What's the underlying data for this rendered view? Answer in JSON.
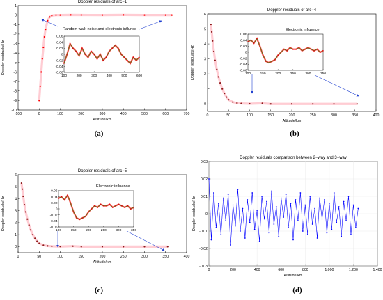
{
  "chart_data": [
    {
      "id": "a",
      "type": "scatter",
      "title": "Doppler residuals of arc−1",
      "xlabel": "Altitude/km",
      "ylabel": "Doppler residuals/Hz",
      "xlim": [
        -100,
        700
      ],
      "ylim": [
        -10,
        1
      ],
      "xticks": [
        -100,
        0,
        100,
        200,
        300,
        400,
        500,
        600,
        700
      ],
      "xtick_labels": [
        "-100",
        "0",
        "100",
        "200",
        "300",
        "400",
        "500",
        "600",
        "700"
      ],
      "yticks": [
        1,
        0,
        -1,
        -2,
        -3,
        -4,
        -5,
        -6,
        -7,
        -8,
        -9,
        -10
      ],
      "ytick_labels": [
        "1",
        "0",
        "-1",
        "-2",
        "-3",
        "-4",
        "-5",
        "-6",
        "-7",
        "-8",
        "-9",
        "-10"
      ],
      "series": [
        {
          "color": "#ff0000",
          "x": [
            0,
            5,
            10,
            15,
            20,
            25,
            30,
            40,
            50,
            60,
            80,
            100,
            150,
            200,
            300,
            400,
            500,
            600,
            630
          ],
          "y": [
            -9.0,
            -7.5,
            -6.0,
            -4.6,
            -3.4,
            -2.3,
            -1.5,
            -0.6,
            -0.2,
            -0.05,
            0.0,
            0.0,
            0.02,
            0.01,
            0.0,
            0.02,
            0.0,
            0.0,
            0.0
          ]
        }
      ],
      "annotation": "Random walk noise and electronic influnce",
      "caption": "(a)",
      "inset": {
        "xlim": [
          100,
          600
        ],
        "ylim": [
          -0.06,
          0.06
        ],
        "xticks": [
          100,
          200,
          300,
          400,
          500,
          600
        ],
        "xtick_labels": [
          "100",
          "200",
          "300",
          "400",
          "500",
          "600"
        ],
        "yticks": [
          0.06,
          0.04,
          0.02,
          0,
          -0.02,
          -0.04,
          -0.06
        ],
        "ytick_labels": [
          "0.06",
          "0.04",
          "0.02",
          "0",
          "-0.02",
          "-0.04",
          "-0.06"
        ],
        "x": [
          100,
          120,
          140,
          160,
          180,
          200,
          220,
          240,
          260,
          280,
          300,
          320,
          340,
          360,
          380,
          400,
          420,
          440,
          460,
          480,
          500,
          520,
          540,
          560,
          580,
          600
        ],
        "y": [
          -0.03,
          0.0,
          0.035,
          0.02,
          0.01,
          -0.005,
          0.02,
          0.0,
          -0.01,
          0.01,
          0.0,
          -0.015,
          0.0,
          -0.02,
          -0.01,
          0.01,
          0.02,
          0.03,
          0.02,
          0.0,
          -0.01,
          -0.02,
          -0.03,
          -0.01,
          -0.02,
          -0.01
        ]
      }
    },
    {
      "id": "b",
      "type": "scatter",
      "title": "Doppler residuals of arc−4",
      "xlabel": "Altitude/km",
      "ylabel": "Doppler residuals/Hz",
      "xlim": [
        0,
        400
      ],
      "ylim": [
        -0.5,
        6
      ],
      "xticks": [
        0,
        50,
        100,
        150,
        200,
        250,
        300,
        350,
        400
      ],
      "xtick_labels": [
        "0",
        "50",
        "100",
        "150",
        "200",
        "250",
        "300",
        "350",
        "400"
      ],
      "yticks": [
        0,
        1,
        2,
        3,
        4,
        5,
        6
      ],
      "ytick_labels": [
        "0",
        "1",
        "2",
        "3",
        "4",
        "5",
        "6"
      ],
      "series": [
        {
          "color": "#8b1a1a",
          "x": [
            8,
            10,
            12,
            15,
            18,
            22,
            26,
            30,
            35,
            40,
            45,
            50,
            60,
            70,
            80,
            100,
            130,
            150,
            200,
            250,
            300,
            355
          ],
          "y": [
            5.3,
            4.8,
            4.2,
            3.5,
            2.9,
            2.3,
            1.8,
            1.4,
            1.0,
            0.7,
            0.45,
            0.28,
            0.12,
            0.06,
            0.03,
            0.01,
            0.04,
            0.0,
            0.0,
            0.0,
            0.0,
            0.0
          ]
        }
      ],
      "annotation": "Electronic influence",
      "caption": "(b)",
      "inset": {
        "xlim": [
          100,
          350
        ],
        "ylim": [
          -0.06,
          0.06
        ],
        "xticks": [
          100,
          150,
          200,
          250,
          300,
          350
        ],
        "xtick_labels": [
          "100",
          "150",
          "200",
          "250",
          "300",
          "350"
        ],
        "yticks": [
          0.06,
          0.04,
          0.02,
          0,
          -0.02,
          -0.04,
          -0.06
        ],
        "ytick_labels": [
          "0.06",
          "0.04",
          "0.02",
          "0",
          "-0.02",
          "-0.04",
          "-0.06"
        ],
        "x": [
          100,
          110,
          120,
          130,
          140,
          150,
          160,
          170,
          180,
          190,
          200,
          210,
          220,
          230,
          240,
          250,
          260,
          270,
          280,
          290,
          300,
          310,
          320,
          330,
          340,
          350
        ],
        "y": [
          0.035,
          0.04,
          0.03,
          0.045,
          0.02,
          -0.01,
          -0.03,
          -0.035,
          -0.03,
          -0.025,
          -0.01,
          0.0,
          0.01,
          0.005,
          0.015,
          0.01,
          0.01,
          0.015,
          0.005,
          0.01,
          0.015,
          0.01,
          0.005,
          0.01,
          0.0,
          0.005
        ]
      }
    },
    {
      "id": "c",
      "type": "scatter",
      "title": "Doppler residuals of arc−5",
      "xlabel": "Altitude/km",
      "ylabel": "Doppler residuals/Hz",
      "xlim": [
        0,
        400
      ],
      "ylim": [
        -0.5,
        6
      ],
      "xticks": [
        0,
        50,
        100,
        150,
        200,
        250,
        300,
        350,
        400
      ],
      "xtick_labels": [
        "0",
        "50",
        "100",
        "150",
        "200",
        "250",
        "300",
        "350",
        "400"
      ],
      "yticks": [
        0,
        1,
        2,
        3,
        4,
        5,
        6
      ],
      "ytick_labels": [
        "0",
        "1",
        "2",
        "3",
        "4",
        "5",
        "6"
      ],
      "series": [
        {
          "color": "#8b1a1a",
          "x": [
            8,
            10,
            12,
            15,
            18,
            22,
            26,
            30,
            35,
            40,
            45,
            50,
            60,
            70,
            80,
            100,
            130,
            150,
            200,
            250,
            300,
            355
          ],
          "y": [
            5.3,
            4.8,
            4.2,
            3.5,
            2.9,
            2.3,
            1.8,
            1.4,
            1.0,
            0.7,
            0.45,
            0.28,
            0.12,
            0.06,
            0.03,
            0.01,
            0.04,
            0.0,
            0.0,
            0.0,
            0.0,
            0.0
          ]
        }
      ],
      "annotation": "Electronic influence",
      "caption": "(c)",
      "inset": {
        "xlim": [
          100,
          350
        ],
        "ylim": [
          -0.06,
          0.06
        ],
        "xticks": [
          100,
          150,
          200,
          250,
          300,
          350
        ],
        "xtick_labels": [
          "100",
          "150",
          "200",
          "250",
          "300",
          "350"
        ],
        "yticks": [
          0.06,
          0.04,
          0.02,
          0,
          -0.02,
          -0.04,
          -0.06
        ],
        "ytick_labels": [
          "0.06",
          "0.04",
          "0.02",
          "0",
          "-0.02",
          "-0.04",
          "-0.06"
        ],
        "x": [
          100,
          110,
          120,
          130,
          140,
          150,
          160,
          170,
          180,
          190,
          200,
          210,
          220,
          230,
          240,
          250,
          260,
          270,
          280,
          290,
          300,
          310,
          320,
          330,
          340,
          350
        ],
        "y": [
          0.035,
          0.04,
          0.03,
          0.045,
          0.02,
          -0.01,
          -0.03,
          -0.035,
          -0.03,
          -0.025,
          -0.01,
          0.0,
          0.01,
          0.005,
          0.015,
          0.01,
          0.01,
          0.015,
          0.005,
          0.01,
          0.015,
          0.01,
          0.005,
          0.01,
          0.0,
          0.005
        ]
      }
    },
    {
      "id": "d",
      "type": "line",
      "title": "Doppler residuals comparison between 2−way and 3−way",
      "xlabel": "Altitude/km",
      "ylabel": "Doppler residuals/Hz",
      "xlim": [
        0,
        1400
      ],
      "ylim": [
        -0.03,
        0.03
      ],
      "xticks": [
        0,
        200,
        400,
        600,
        800,
        1000,
        1200,
        1400
      ],
      "xtick_labels": [
        "0",
        "200",
        "400",
        "600",
        "800",
        "1,000",
        "1,200",
        "1,400"
      ],
      "yticks": [
        0.03,
        0.02,
        0.01,
        0,
        -0.01,
        -0.02,
        -0.03
      ],
      "ytick_labels": [
        "0.03",
        "0.02",
        "0.01",
        "0",
        "-0.01",
        "-0.02",
        "-0.03"
      ],
      "series": [
        {
          "color": "#0000ff",
          "x": [
            0,
            20,
            40,
            60,
            80,
            100,
            120,
            140,
            160,
            180,
            200,
            220,
            240,
            260,
            280,
            300,
            320,
            340,
            360,
            380,
            400,
            420,
            440,
            460,
            480,
            500,
            520,
            540,
            560,
            580,
            600,
            620,
            640,
            660,
            680,
            700,
            720,
            740,
            760,
            780,
            800,
            820,
            840,
            860,
            880,
            900,
            920,
            940,
            960,
            980,
            1000,
            1020,
            1040,
            1060,
            1080,
            1100,
            1120,
            1140,
            1160,
            1180,
            1200,
            1220,
            1240
          ],
          "y": [
            0.02,
            -0.015,
            0.012,
            -0.008,
            0.006,
            -0.012,
            0.009,
            -0.004,
            0.011,
            -0.018,
            0.005,
            -0.007,
            0.014,
            -0.01,
            0.003,
            -0.014,
            0.008,
            -0.005,
            0.012,
            -0.009,
            0.002,
            -0.016,
            0.01,
            -0.003,
            0.007,
            -0.011,
            0.013,
            -0.006,
            0.004,
            -0.013,
            0.009,
            -0.002,
            0.011,
            -0.008,
            0.006,
            -0.015,
            0.008,
            -0.004,
            0.012,
            -0.01,
            0.005,
            -0.012,
            0.01,
            -0.006,
            0.003,
            -0.014,
            0.009,
            -0.003,
            0.008,
            -0.011,
            0.006,
            -0.009,
            0.012,
            -0.005,
            0.004,
            -0.013,
            0.007,
            -0.004,
            0.01,
            -0.012,
            0.005,
            -0.008,
            0.003
          ]
        }
      ],
      "caption": "(d)"
    }
  ]
}
